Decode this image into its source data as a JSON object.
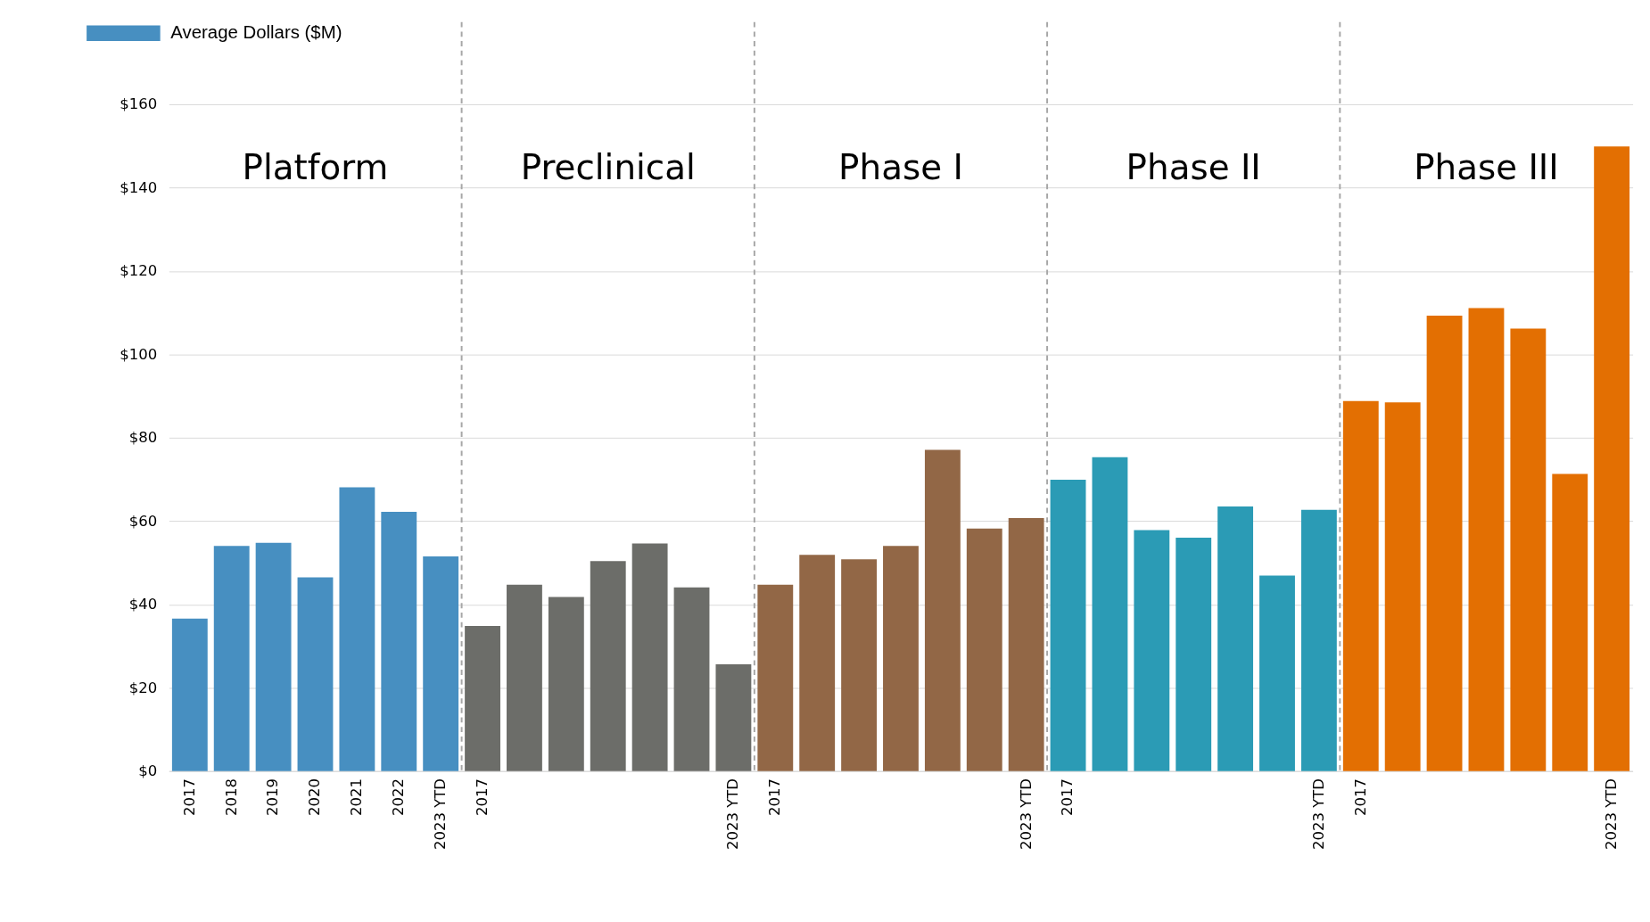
{
  "chart_data": {
    "type": "bar",
    "categories": [
      "2017",
      "2018",
      "2019",
      "2020",
      "2021",
      "2022",
      "2023 YTD",
      "2017",
      null,
      null,
      null,
      null,
      null,
      "2023 YTD",
      "2017",
      null,
      null,
      null,
      null,
      null,
      "2023 YTD",
      "2017",
      null,
      null,
      null,
      null,
      null,
      "2023 YTD",
      "2017",
      null,
      null,
      null,
      null,
      null,
      "2023 YTD"
    ],
    "series": [
      {
        "name": "Average Dollars ($M)",
        "color": "#478fc1",
        "colors": [
          "#478fc1",
          "#478fc1",
          "#478fc1",
          "#478fc1",
          "#478fc1",
          "#478fc1",
          "#478fc1",
          "#6c6d69",
          "#6c6d69",
          "#6c6d69",
          "#6c6d69",
          "#6c6d69",
          "#6c6d69",
          "#6c6d69",
          "#926746",
          "#926746",
          "#926746",
          "#926746",
          "#926746",
          "#926746",
          "#926746",
          "#2b9bb5",
          "#2b9bb5",
          "#2b9bb5",
          "#2b9bb5",
          "#2b9bb5",
          "#2b9bb5",
          "#2b9bb5",
          "#e36f02",
          "#e36f02",
          "#e36f02",
          "#e36f02",
          "#e36f02",
          "#e36f02",
          "#e36f02"
        ],
        "values": [
          36.6,
          54.0,
          54.8,
          46.5,
          68.1,
          62.2,
          51.5,
          34.8,
          44.7,
          41.8,
          50.4,
          54.6,
          44.1,
          25.6,
          44.7,
          51.9,
          50.8,
          54.0,
          77.1,
          58.2,
          60.7,
          69.9,
          75.3,
          57.8,
          56.0,
          63.5,
          46.9,
          62.7,
          88.8,
          88.5,
          109.3,
          111.1,
          106.2,
          71.3,
          149.9
        ]
      }
    ],
    "annotations": [
      "Platform",
      "Preclinical",
      "Phase I",
      "Phase II",
      "Phase III"
    ],
    "ylim": [
      0,
      160
    ],
    "yticks": [
      {
        "value": 0,
        "label": "$0"
      },
      {
        "value": 20,
        "label": "$20"
      },
      {
        "value": 40,
        "label": "$40"
      },
      {
        "value": 60,
        "label": "$60"
      },
      {
        "value": 80,
        "label": "$80"
      },
      {
        "value": 100,
        "label": "$100"
      },
      {
        "value": 120,
        "label": "$120"
      },
      {
        "value": 140,
        "label": "$140"
      },
      {
        "value": 160,
        "label": "$160"
      }
    ],
    "grid": "y",
    "legend": "top left"
  }
}
